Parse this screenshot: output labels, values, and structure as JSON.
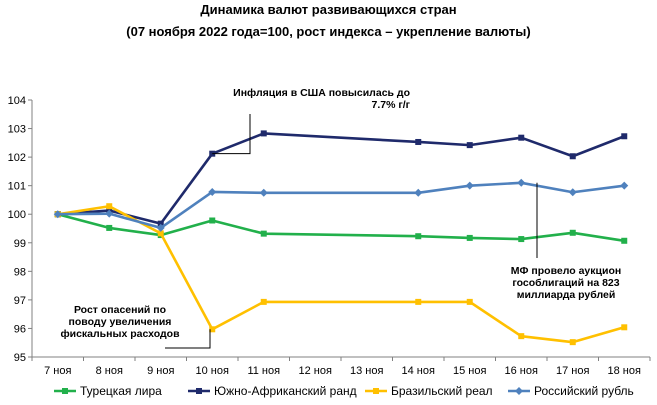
{
  "chart_data": {
    "type": "line",
    "title": "Динамика валют развивающихся стран",
    "subtitle": "(07 ноября 2022 года=100, рост индекса – укрепление валюты)",
    "categories": [
      "7 ноя",
      "8 ноя",
      "9 ноя",
      "10 ноя",
      "11 ноя",
      "12 ноя",
      "13 ноя",
      "14 ноя",
      "15 ноя",
      "16 ноя",
      "17 ноя",
      "18 ноя"
    ],
    "ylim": [
      95,
      104
    ],
    "yticks": [
      "95",
      "96",
      "97",
      "98",
      "99",
      "100",
      "101",
      "102",
      "103",
      "104"
    ],
    "grid": false,
    "legend_position": "bottom",
    "series": [
      {
        "name": "Турецкая лира",
        "color": "#22b04b",
        "values": [
          100.0,
          99.52,
          99.27,
          99.78,
          99.32,
          null,
          null,
          99.23,
          99.17,
          99.13,
          99.35,
          99.07
        ]
      },
      {
        "name": "Южно-Африканский ранд",
        "color": "#1f2a6b",
        "values": [
          100.0,
          100.13,
          99.67,
          102.12,
          102.83,
          null,
          null,
          102.53,
          102.42,
          102.68,
          102.03,
          102.73
        ]
      },
      {
        "name": "Бразильский реал",
        "color": "#ffc000",
        "values": [
          100.0,
          100.28,
          99.33,
          95.97,
          96.93,
          null,
          null,
          96.93,
          96.93,
          95.73,
          95.52,
          96.04
        ]
      },
      {
        "name": "Российский рубль",
        "color": "#4f81bd",
        "values": [
          100.0,
          100.02,
          99.52,
          100.78,
          100.75,
          null,
          null,
          100.75,
          101.0,
          101.1,
          100.77,
          101.0
        ]
      }
    ],
    "annotations": [
      {
        "id": "ann-usa",
        "lines": [
          "Инфляция в США повысилась до",
          "7.7% г/г"
        ],
        "category_index": 3,
        "series_index": 1
      },
      {
        "id": "ann-minfin",
        "lines": [
          "МФ провело аукцион",
          "гособлигаций на 823",
          "миллиарда рублей"
        ],
        "category_index": 9,
        "series_index": 3
      },
      {
        "id": "ann-brazil",
        "lines": [
          "Рост опасений по",
          "поводу увеличения",
          "фискальных расходов"
        ],
        "category_index": 3,
        "series_index": 2
      }
    ]
  }
}
